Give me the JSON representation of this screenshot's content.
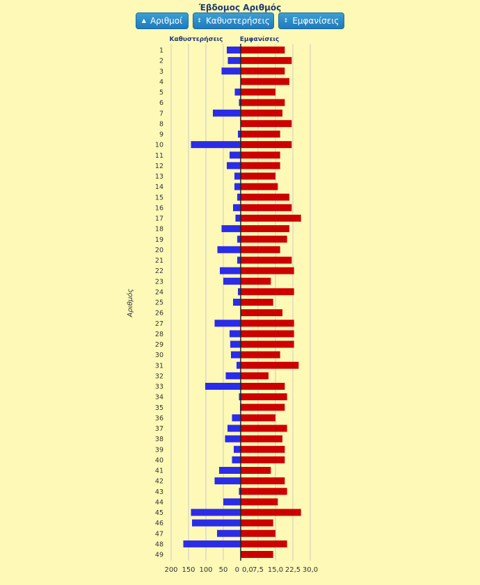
{
  "header": {
    "title": "Έβδομος Αριθμός",
    "buttons": [
      {
        "label": "Αριθμοί",
        "icon": "caret-up-icon"
      },
      {
        "label": "Καθυστερήσεις",
        "icon": "sort-icon"
      },
      {
        "label": "Εμφανίσεις",
        "icon": "sort-icon"
      }
    ]
  },
  "chart_data": {
    "type": "bar",
    "orientation": "horizontal-diverging",
    "ylabel": "Αριθμός",
    "categories": [
      "1",
      "2",
      "3",
      "4",
      "5",
      "6",
      "7",
      "8",
      "9",
      "10",
      "11",
      "12",
      "13",
      "14",
      "15",
      "16",
      "17",
      "18",
      "19",
      "20",
      "21",
      "22",
      "23",
      "24",
      "25",
      "26",
      "27",
      "28",
      "29",
      "30",
      "31",
      "32",
      "33",
      "34",
      "35",
      "36",
      "37",
      "38",
      "39",
      "40",
      "41",
      "42",
      "43",
      "44",
      "45",
      "46",
      "47",
      "48",
      "49"
    ],
    "left_axis": {
      "label": "Καθυστερήσεις",
      "ticks": [
        "200",
        "150",
        "100",
        "50",
        "0"
      ],
      "range": [
        0,
        200
      ]
    },
    "right_axis": {
      "label": "Εμφανίσεις",
      "ticks": [
        "0,0",
        "7,5",
        "15,0",
        "22,5",
        "30,0"
      ],
      "range": [
        0,
        30
      ]
    },
    "series": [
      {
        "name": "Καθυστερήσεις",
        "color": "#2b2bea",
        "values": [
          40,
          37,
          55,
          0,
          17,
          5,
          80,
          0,
          8,
          143,
          32,
          40,
          18,
          18,
          10,
          22,
          15,
          55,
          10,
          67,
          10,
          60,
          50,
          8,
          22,
          0,
          75,
          32,
          30,
          28,
          12,
          43,
          102,
          5,
          2,
          25,
          38,
          45,
          20,
          25,
          62,
          75,
          5,
          50,
          143,
          140,
          68,
          165,
          0
        ]
      },
      {
        "name": "Εμφανίσεις",
        "color": "#cc0000",
        "values": [
          19,
          22,
          19,
          21,
          15,
          19,
          18,
          22,
          17,
          22,
          17,
          17,
          15,
          16,
          21,
          22,
          26,
          21,
          20,
          17,
          22,
          23,
          13,
          23,
          14,
          18,
          23,
          23,
          23,
          17,
          25,
          12,
          19,
          20,
          19,
          15,
          20,
          18,
          19,
          19,
          13,
          19,
          20,
          16,
          26,
          14,
          15,
          20,
          14
        ]
      }
    ]
  }
}
